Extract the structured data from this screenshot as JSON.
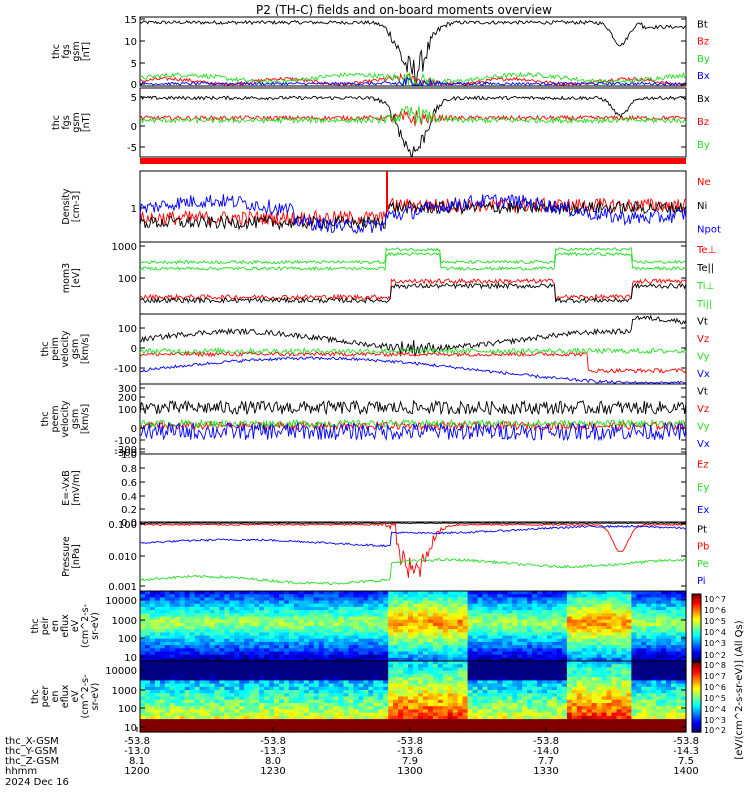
{
  "title": "P2 (TH-C) fields and on-board moments overview",
  "colors": {
    "black": "#000000",
    "red": "#ff0000",
    "green": "#22dd22",
    "blue": "#0000ff"
  },
  "chart_data": [
    {
      "type": "line",
      "id": "fgs",
      "ylabel_lines": [
        "thc",
        "fgs",
        "gsm",
        "[nT]"
      ],
      "yticks": [
        "15",
        "10",
        "5",
        "0"
      ],
      "yrange": [
        0,
        15
      ],
      "series": [
        {
          "name": "Bt",
          "color": "black"
        },
        {
          "name": "Bz",
          "color": "red"
        },
        {
          "name": "By",
          "color": "green"
        },
        {
          "name": "Bx",
          "color": "blue"
        }
      ]
    },
    {
      "type": "line",
      "id": "fgs_gse",
      "ylabel_lines": [
        "thc",
        "fgs",
        "gsm",
        "[nT]"
      ],
      "yticks": [
        "5",
        "0",
        "-5"
      ],
      "yrange": [
        -8,
        7
      ],
      "series": [
        {
          "name": "Bx",
          "color": "black"
        },
        {
          "name": "Bz",
          "color": "red"
        },
        {
          "name": "By",
          "color": "green"
        }
      ]
    },
    {
      "type": "line",
      "id": "density",
      "ylabel_lines": [
        "Density",
        "[cm-3]"
      ],
      "yticks": [
        "1"
      ],
      "log": true,
      "series": [
        {
          "name": "Ne",
          "color": "red"
        },
        {
          "name": "Ni",
          "color": "black"
        },
        {
          "name": "Npot",
          "color": "blue"
        }
      ]
    },
    {
      "type": "line",
      "id": "temp",
      "ylabel_lines": [
        "mom3",
        "[eV]"
      ],
      "yticks": [
        "1000",
        "100"
      ],
      "log": true,
      "yrange": [
        10,
        1000
      ],
      "series": [
        {
          "name": "Te⊥",
          "color": "red"
        },
        {
          "name": "Te||",
          "color": "black"
        },
        {
          "name": "Ti⊥",
          "color": "green"
        },
        {
          "name": "Ti||",
          "color": "green"
        }
      ]
    },
    {
      "type": "line",
      "id": "vel_peim",
      "ylabel_lines": [
        "thc",
        "peim",
        "velocity",
        "gsm",
        "[km/s]"
      ],
      "yticks": [
        "100",
        "0",
        "-100"
      ],
      "yrange": [
        -150,
        180
      ],
      "series": [
        {
          "name": "Vt",
          "color": "black"
        },
        {
          "name": "Vz",
          "color": "red"
        },
        {
          "name": "Vy",
          "color": "green"
        },
        {
          "name": "Vx",
          "color": "blue"
        }
      ]
    },
    {
      "type": "line",
      "id": "vel_peem",
      "ylabel_lines": [
        "thc",
        "peem",
        "velocity",
        "gsm",
        "[km/s]"
      ],
      "yticks": [
        "300",
        "200",
        "100",
        "0",
        "-100",
        "-200",
        "-300"
      ],
      "yrange": [
        -300,
        300
      ],
      "series": [
        {
          "name": "Vt",
          "color": "black"
        },
        {
          "name": "Vz",
          "color": "red"
        },
        {
          "name": "Vy",
          "color": "green"
        },
        {
          "name": "Vx",
          "color": "blue"
        }
      ]
    },
    {
      "type": "line",
      "id": "efield",
      "ylabel_lines": [
        "E=-VxB",
        "[mV/m]"
      ],
      "yticks": [
        "1.0",
        "0.8",
        "0.6",
        "0.4",
        "0.2",
        "0.0"
      ],
      "yrange": [
        0,
        1
      ],
      "series": [
        {
          "name": "Ez",
          "color": "red"
        },
        {
          "name": "Ey",
          "color": "green"
        },
        {
          "name": "Ex",
          "color": "blue"
        }
      ]
    },
    {
      "type": "line",
      "id": "pressure",
      "ylabel_lines": [
        "Pressure",
        "[nPa]"
      ],
      "yticks": [
        "0.100",
        "0.010",
        "0.001"
      ],
      "log": true,
      "yrange": [
        0.001,
        0.1
      ],
      "series": [
        {
          "name": "Pt",
          "color": "black"
        },
        {
          "name": "Pb",
          "color": "red"
        },
        {
          "name": "Pe",
          "color": "green"
        },
        {
          "name": "Pi",
          "color": "blue"
        }
      ]
    },
    {
      "type": "heatmap",
      "id": "peir",
      "ylabel_lines": [
        "thc",
        "peir",
        "en",
        "eflux",
        "eV",
        "(cm^2-s-",
        "sr-eV)"
      ],
      "yticks": [
        "10000",
        "1000",
        "100",
        "10"
      ]
    },
    {
      "type": "heatmap",
      "id": "peer",
      "ylabel_lines": [
        "thc",
        "peer",
        "en",
        "eflux",
        "eV",
        "(cm^2-s-",
        "sr-eV)"
      ],
      "yticks": [
        "10000",
        "1000",
        "100",
        "10"
      ]
    }
  ],
  "colorbar": {
    "ticks": [
      "10^7",
      "10^6",
      "10^5",
      "10^4",
      "10^3",
      "10^2",
      "10^8",
      "10^7",
      "10^6",
      "10^5",
      "10^4",
      "10^3",
      "10^2"
    ],
    "label": "[eV/(cm^2-s-sr-eV)] (All Qs)"
  },
  "footer": {
    "row_labels": [
      "thc_X-GSM",
      "thc_Y-GSM",
      "thc_Z-GSM",
      "hhmm",
      "2024 Dec 16"
    ],
    "columns": [
      {
        "x": "-53.8",
        "y": "-13.0",
        "z": "8.1",
        "t": "1200"
      },
      {
        "x": "-53.8",
        "y": "-13.3",
        "z": "8.0",
        "t": "1230"
      },
      {
        "x": "-53.8",
        "y": "-13.6",
        "z": "7.9",
        "t": "1300"
      },
      {
        "x": "-53.8",
        "y": "-14.0",
        "z": "7.7",
        "t": "1330"
      },
      {
        "x": "-53.8",
        "y": "-14.3",
        "z": "7.5",
        "t": "1400"
      }
    ]
  }
}
